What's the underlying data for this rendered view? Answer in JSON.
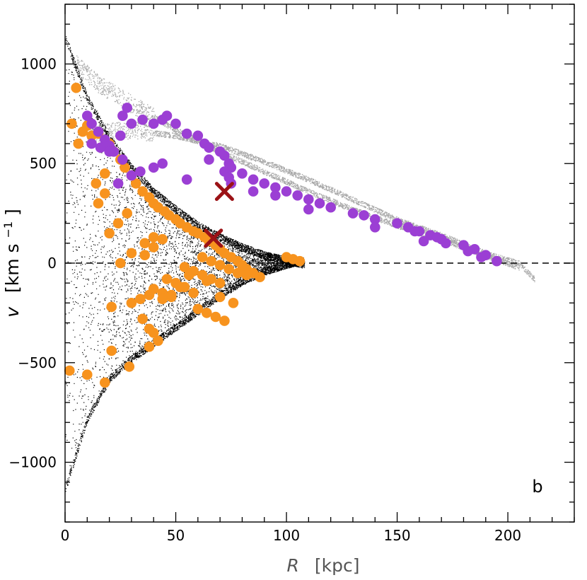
{
  "chart_data": {
    "type": "scatter",
    "title": "",
    "panel_label": "b",
    "xlabel": {
      "symbol": "R",
      "unit": "[kpc]"
    },
    "ylabel": {
      "symbol": "v",
      "unit_open": "[km s",
      "unit_exp": "−1",
      "unit_close": "]"
    },
    "xlim": [
      0,
      230
    ],
    "ylim": [
      -1300,
      1300
    ],
    "x_ticks": [
      0,
      50,
      100,
      150,
      200
    ],
    "x_tick_labels": [
      "0",
      "50",
      "100",
      "150",
      "200"
    ],
    "y_ticks": [
      -1000,
      -500,
      0,
      500,
      1000
    ],
    "y_tick_labels": [
      "−1000",
      "−500",
      "0",
      "500",
      "1000"
    ],
    "zero_line": {
      "y": 0,
      "from_x": 0,
      "to_x": 230,
      "style": "dashed"
    },
    "colors": {
      "simulated_bound": "#000000",
      "simulated_stream": "#a8a8a8",
      "observed_orange": "#f7931e",
      "observed_purple": "#9b3fd4",
      "highlight_cross": "#9b1216"
    },
    "series": [
      {
        "name": "simulated-particles-bound",
        "kind": "dense-points",
        "envelope_upper": [
          [
            0,
            1150
          ],
          [
            10,
            850
          ],
          [
            20,
            650
          ],
          [
            30,
            500
          ],
          [
            40,
            380
          ],
          [
            50,
            290
          ],
          [
            60,
            210
          ],
          [
            70,
            150
          ],
          [
            80,
            100
          ],
          [
            90,
            60
          ],
          [
            100,
            35
          ],
          [
            108,
            15
          ]
        ],
        "envelope_lower": [
          [
            0,
            -1150
          ],
          [
            10,
            -800
          ],
          [
            20,
            -600
          ],
          [
            30,
            -500
          ],
          [
            40,
            -420
          ],
          [
            50,
            -340
          ],
          [
            60,
            -260
          ],
          [
            70,
            -180
          ],
          [
            80,
            -110
          ],
          [
            90,
            -60
          ],
          [
            100,
            -25
          ],
          [
            108,
            -5
          ]
        ]
      },
      {
        "name": "simulated-particles-stream",
        "kind": "dense-points",
        "branches": [
          [
            [
              10,
              650
            ],
            [
              30,
              670
            ],
            [
              50,
              640
            ],
            [
              70,
              590
            ],
            [
              90,
              510
            ],
            [
              110,
              420
            ],
            [
              130,
              320
            ],
            [
              150,
              220
            ],
            [
              170,
              140
            ],
            [
              190,
              50
            ],
            [
              205,
              0
            ],
            [
              212,
              -80
            ]
          ],
          [
            [
              5,
              1000
            ],
            [
              15,
              900
            ],
            [
              30,
              800
            ],
            [
              50,
              670
            ],
            [
              70,
              560
            ],
            [
              90,
              460
            ],
            [
              110,
              360
            ],
            [
              130,
              270
            ],
            [
              150,
              190
            ],
            [
              170,
              120
            ],
            [
              190,
              40
            ],
            [
              205,
              -20
            ]
          ]
        ]
      },
      {
        "name": "observed-orange",
        "x": [
          3,
          5,
          10,
          15,
          20,
          22,
          25,
          27,
          30,
          32,
          35,
          38,
          40,
          42,
          45,
          47,
          50,
          52,
          55,
          58,
          60,
          63,
          65,
          68,
          70,
          72,
          75,
          78,
          80,
          82,
          85,
          88,
          62,
          66,
          70,
          74,
          78,
          82,
          54,
          58,
          62,
          66,
          70,
          46,
          50,
          54,
          58,
          40,
          44,
          48,
          30,
          34,
          38,
          25,
          30,
          36,
          40,
          20,
          24,
          28,
          15,
          18,
          2,
          10,
          18,
          21,
          29,
          35,
          38,
          40,
          42,
          21,
          38,
          44,
          48,
          52,
          36,
          40,
          44,
          70,
          76,
          60,
          64,
          68,
          72,
          100,
          103,
          106,
          56,
          64,
          18,
          14,
          12,
          8,
          6
        ],
        "y": [
          700,
          880,
          690,
          650,
          600,
          560,
          520,
          480,
          440,
          400,
          360,
          330,
          300,
          280,
          260,
          240,
          220,
          200,
          180,
          160,
          150,
          130,
          110,
          90,
          70,
          50,
          30,
          10,
          -10,
          -30,
          -50,
          -70,
          30,
          10,
          -10,
          -30,
          -50,
          -60,
          -20,
          -40,
          -60,
          -80,
          -100,
          -80,
          -100,
          -120,
          -150,
          -130,
          -150,
          -170,
          -200,
          -180,
          -160,
          0,
          50,
          100,
          130,
          150,
          200,
          250,
          300,
          350,
          -540,
          -560,
          -600,
          -440,
          -520,
          -280,
          -330,
          -350,
          -390,
          -220,
          -420,
          -180,
          -160,
          -120,
          40,
          80,
          120,
          -170,
          -200,
          -230,
          -250,
          -270,
          -290,
          30,
          20,
          10,
          -60,
          -90,
          450,
          400,
          640,
          660,
          600
        ],
        "marker": "circle"
      },
      {
        "name": "observed-purple",
        "x": [
          10,
          12,
          15,
          18,
          20,
          22,
          25,
          26,
          28,
          30,
          35,
          40,
          44,
          46,
          50,
          55,
          60,
          63,
          65,
          70,
          72,
          74,
          75,
          80,
          85,
          90,
          95,
          100,
          105,
          110,
          115,
          120,
          130,
          135,
          140,
          150,
          155,
          160,
          165,
          170,
          180,
          185,
          190,
          195,
          55,
          65,
          75,
          85,
          95,
          110,
          140,
          158,
          162,
          168,
          172,
          182,
          188,
          34,
          40,
          44,
          30,
          24,
          12,
          16,
          20,
          26,
          72,
          74
        ],
        "y": [
          740,
          700,
          660,
          620,
          590,
          560,
          640,
          740,
          780,
          700,
          720,
          700,
          720,
          740,
          700,
          650,
          640,
          600,
          580,
          560,
          540,
          500,
          480,
          450,
          420,
          400,
          380,
          360,
          340,
          320,
          300,
          280,
          250,
          240,
          220,
          200,
          180,
          160,
          140,
          120,
          90,
          70,
          40,
          10,
          420,
          520,
          400,
          360,
          340,
          270,
          180,
          160,
          110,
          130,
          100,
          60,
          30,
          460,
          480,
          500,
          440,
          400,
          600,
          580,
          560,
          520,
          460,
          430
        ],
        "marker": "circle"
      },
      {
        "name": "highlight-crosses",
        "x": [
          72,
          67
        ],
        "y": [
          360,
          125
        ],
        "marker": "x"
      }
    ]
  }
}
